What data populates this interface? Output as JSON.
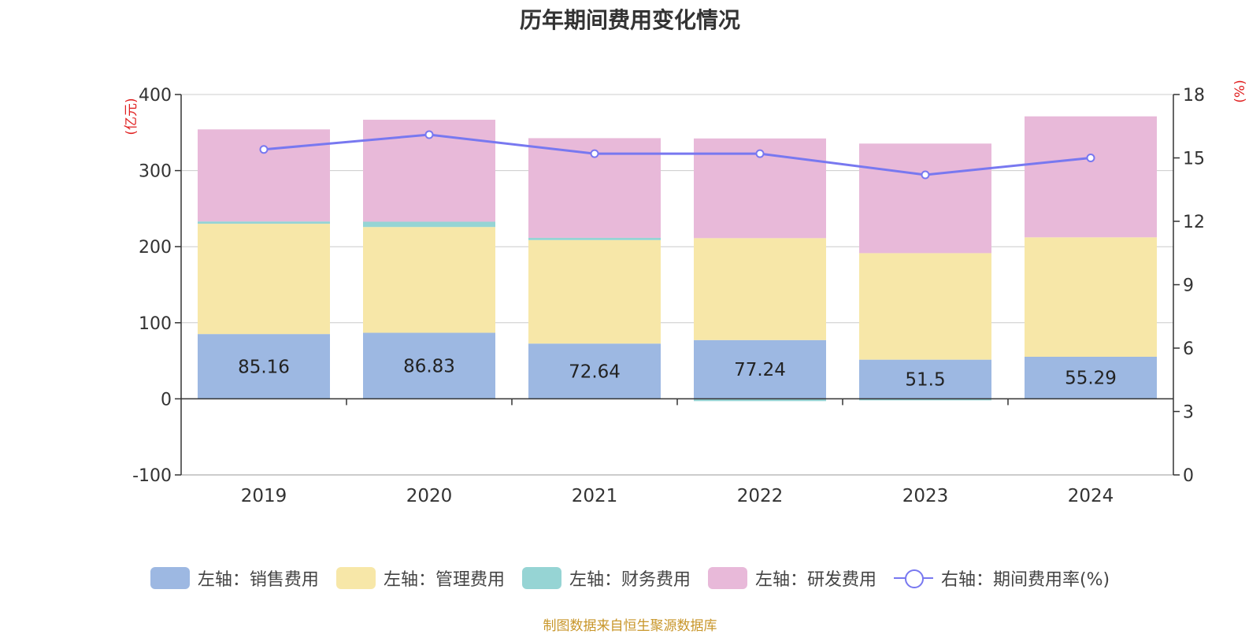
{
  "chart_data": {
    "type": "bar",
    "title": "历年期间费用变化情况",
    "categories": [
      "2019",
      "2020",
      "2021",
      "2022",
      "2023",
      "2024"
    ],
    "y_left": {
      "unit_label": "(亿元)",
      "ylim": [
        -100,
        400
      ],
      "ticks": [
        -100,
        0,
        100,
        200,
        300,
        400
      ]
    },
    "y_right": {
      "unit_label": "(%)",
      "ylim": [
        0,
        18
      ],
      "ticks": [
        0,
        3,
        6,
        9,
        12,
        15,
        18
      ]
    },
    "series": [
      {
        "name": "左轴：销售费用",
        "type": "bar",
        "stack": "cost",
        "color": "#9db8e2",
        "values": [
          85.16,
          86.83,
          72.64,
          77.24,
          51.5,
          55.29
        ],
        "show_labels": true
      },
      {
        "name": "左轴：管理费用",
        "type": "bar",
        "stack": "cost",
        "color": "#f7e7a8",
        "values": [
          145,
          139,
          136,
          134,
          140,
          157
        ]
      },
      {
        "name": "左轴：财务费用",
        "type": "bar",
        "stack": "cost",
        "color": "#96d4d4",
        "values": [
          3,
          7,
          3,
          -3,
          -2,
          0
        ]
      },
      {
        "name": "左轴：研发费用",
        "type": "bar",
        "stack": "cost",
        "color": "#e8b9d9",
        "values": [
          121,
          134,
          131,
          131,
          144,
          159
        ]
      },
      {
        "name": "右轴：期间费用率(%)",
        "type": "line",
        "axis": "right",
        "color": "#7878f0",
        "values": [
          15.4,
          16.1,
          15.2,
          15.2,
          14.2,
          15.0
        ]
      }
    ],
    "grid": true,
    "legend_position": "bottom"
  },
  "source_note": "制图数据来自恒生聚源数据库"
}
